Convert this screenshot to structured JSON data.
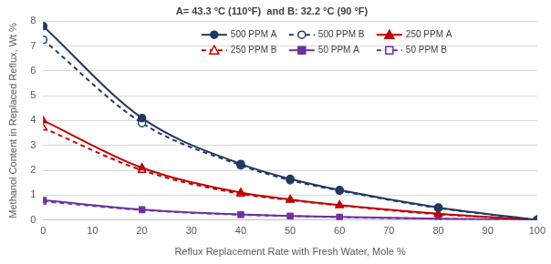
{
  "chart_data": {
    "type": "line",
    "title": "A= 43.3 °C (110°F)  and B: 32.2 °C (90 °F)",
    "x_label": "Reflux Replacement Rate with Fresh Water, Mole %",
    "y_label": "Methanol Content in Replaced Reflux, Wt %",
    "x": [
      0,
      20,
      40,
      50,
      60,
      80,
      100
    ],
    "series": [
      {
        "name": "500 PPM A",
        "color": "#203864",
        "marker": "circle",
        "line_style": "solid",
        "values": [
          7.8,
          4.1,
          2.25,
          1.65,
          1.2,
          0.5,
          0
        ]
      },
      {
        "name": "500 PPM B",
        "color": "#203864",
        "marker": "circle_open",
        "line_style": "dashed",
        "values": [
          7.25,
          3.9,
          2.2,
          1.6,
          1.18,
          0.48,
          0
        ]
      },
      {
        "name": "250 PPM A",
        "color": "#c00000",
        "marker": "triangle",
        "line_style": "solid",
        "values": [
          4.0,
          2.1,
          1.1,
          0.82,
          0.6,
          0.25,
          0
        ]
      },
      {
        "name": "250 PPM B",
        "color": "#c00000",
        "marker": "triangle_open",
        "line_style": "dashed",
        "values": [
          3.7,
          2.0,
          1.05,
          0.8,
          0.58,
          0.23,
          0
        ]
      },
      {
        "name": "50 PPM A",
        "color": "#7030a0",
        "marker": "square",
        "line_style": "solid",
        "values": [
          0.8,
          0.42,
          0.22,
          0.16,
          0.12,
          0.05,
          0
        ]
      },
      {
        "name": "50 PPM B",
        "color": "#7030a0",
        "marker": "square_open",
        "line_style": "dashed",
        "values": [
          0.75,
          0.4,
          0.21,
          0.16,
          0.11,
          0.05,
          0
        ]
      }
    ],
    "xlim": [
      0,
      100
    ],
    "xticks": [
      0,
      10,
      20,
      30,
      40,
      50,
      60,
      70,
      80,
      90,
      100
    ],
    "ylim": [
      0,
      8
    ],
    "yticks": [
      0,
      1,
      2,
      3,
      4,
      5,
      6,
      7,
      8
    ],
    "grid": "y",
    "legend": "top-right"
  }
}
